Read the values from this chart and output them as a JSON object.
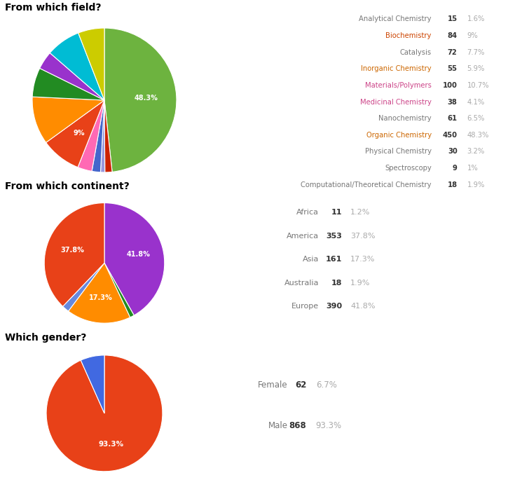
{
  "field": {
    "title": "From which field?",
    "labels": [
      "Analytical Chemistry",
      "Biochemistry",
      "Catalysis",
      "Inorganic Chemistry",
      "Materials/Polymers",
      "Medicinal Chemistry",
      "Nanochemistry",
      "Organic Chemistry",
      "Physical Chemistry",
      "Spectroscopy",
      "Computational/Theoretical Chemistry"
    ],
    "counts": [
      15,
      84,
      72,
      55,
      100,
      38,
      61,
      450,
      30,
      9,
      18
    ],
    "percentages": [
      "1.6%",
      "9%",
      "7.7%",
      "5.9%",
      "10.7%",
      "4.1%",
      "6.5%",
      "48.3%",
      "3.2%",
      "1%",
      "1.9%"
    ],
    "label_colors": [
      "#777777",
      "#cc4400",
      "#777777",
      "#cc6600",
      "#cc4488",
      "#cc4488",
      "#777777",
      "#cc6600",
      "#777777",
      "#777777",
      "#777777"
    ],
    "pie_order": [
      7,
      0,
      9,
      10,
      8,
      1,
      4,
      6,
      5,
      2,
      3
    ],
    "pie_colors_ordered": [
      "#6db33f",
      "#cc2200",
      "#9999dd",
      "#4466cc",
      "#ff69b4",
      "#e84118",
      "#ff8c00",
      "#228B22",
      "#9932CC",
      "#00bcd4",
      "#cccc00"
    ],
    "pie_label_items": {
      "Organic Chemistry": "48.3%",
      "Biochemistry": "9%"
    }
  },
  "continent": {
    "title": "From which continent?",
    "labels": [
      "Africa",
      "America",
      "Asia",
      "Australia",
      "Europe"
    ],
    "counts": [
      11,
      353,
      161,
      18,
      390
    ],
    "percentages": [
      "1.2%",
      "37.8%",
      "17.3%",
      "1.9%",
      "41.8%"
    ],
    "label_color": "#777777",
    "pie_order": [
      4,
      0,
      2,
      3,
      1
    ],
    "pie_colors": {
      "Europe": "#9932CC",
      "Africa": "#228B22",
      "Asia": "#ff8c00",
      "Australia": "#6688dd",
      "America": "#e84118"
    },
    "pie_label_items": {
      "Europe": "41.8%",
      "Asia": "17.3%",
      "America": "37.8%"
    }
  },
  "gender": {
    "title": "Which gender?",
    "labels": [
      "Female",
      "Male"
    ],
    "counts": [
      62,
      868
    ],
    "percentages": [
      "6.7%",
      "93.3%"
    ],
    "label_color": "#777777",
    "pie_order": [
      1,
      0
    ],
    "pie_colors": {
      "Male": "#e84118",
      "Female": "#4169e1"
    },
    "pie_label_items": {
      "Male": "93.3%"
    }
  },
  "count_color": "#333333",
  "pct_color": "#aaaaaa"
}
